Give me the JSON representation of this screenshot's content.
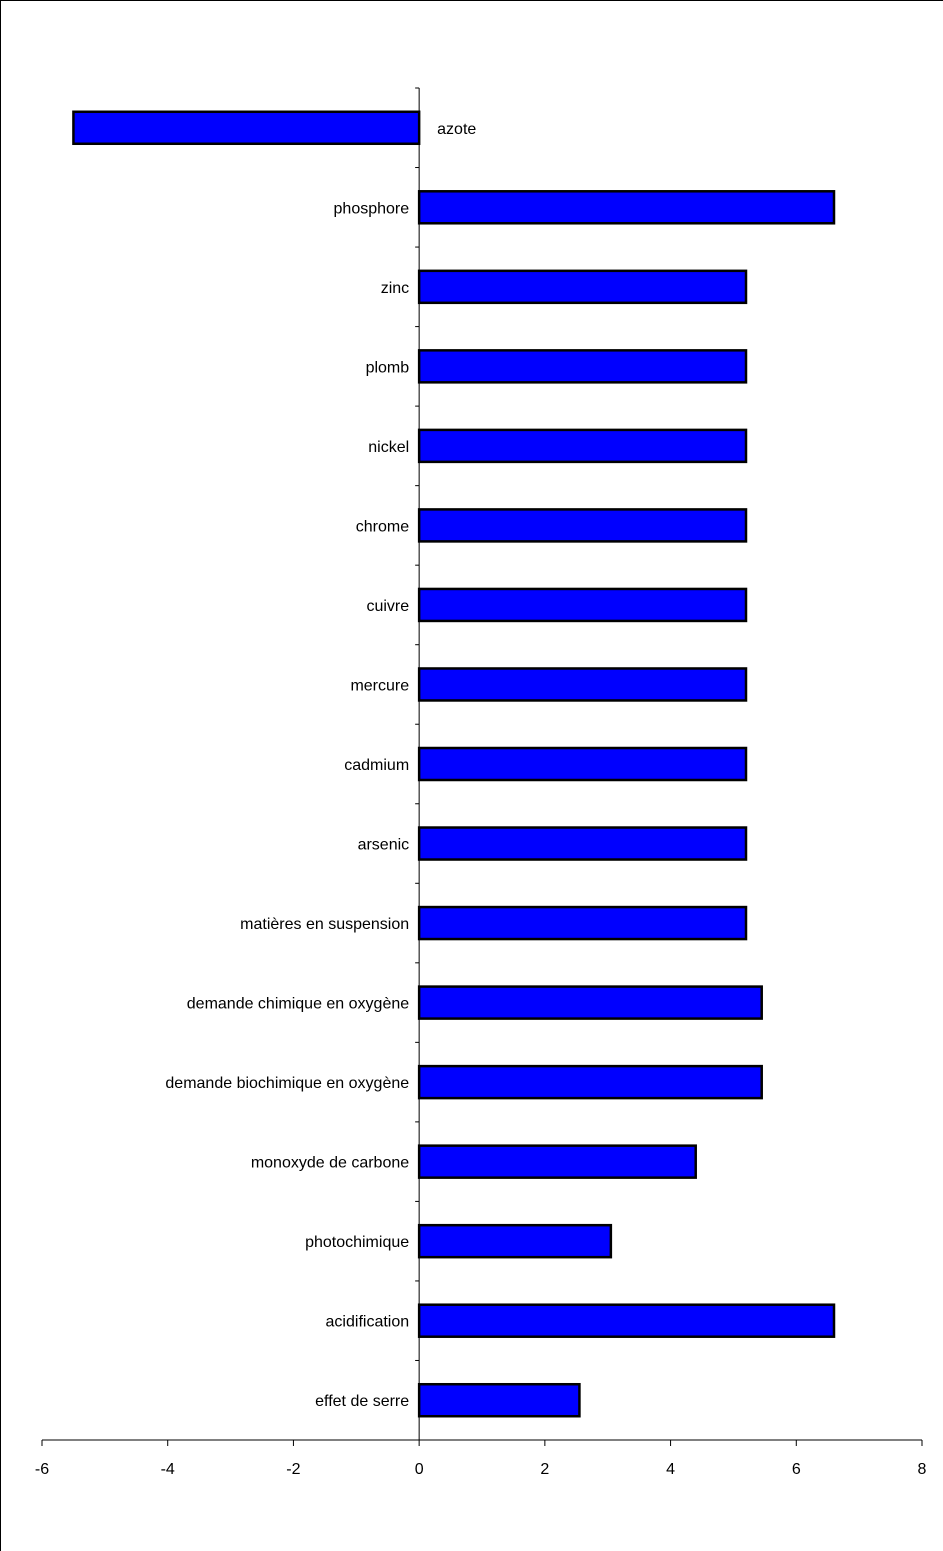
{
  "chart_data": {
    "type": "bar",
    "orientation": "horizontal",
    "title": "",
    "xlabel": "",
    "ylabel": "",
    "categories": [
      "azote",
      "phosphore",
      "zinc",
      "plomb",
      "nickel",
      "chrome",
      "cuivre",
      "mercure",
      "cadmium",
      "arsenic",
      "matières en suspension",
      "demande chimique en oxygène",
      "demande biochimique en oxygène",
      "monoxyde de carbone",
      "photochimique",
      "acidification",
      "effet de serre"
    ],
    "values": [
      -5.5,
      6.6,
      5.2,
      5.2,
      5.2,
      5.2,
      5.2,
      5.2,
      5.2,
      5.2,
      5.2,
      5.45,
      5.45,
      4.4,
      3.05,
      6.6,
      2.55
    ],
    "xlim": [
      -6,
      8
    ],
    "xticks": [
      -6,
      -4,
      -2,
      0,
      2,
      4,
      6,
      8
    ],
    "xtick_labels": [
      "-6",
      "-4",
      "-2",
      "0",
      "2",
      "4",
      "6",
      "8"
    ],
    "bar_color": "#0000ff",
    "bar_edge_color": "#000000",
    "grid": false,
    "legend": "none"
  }
}
